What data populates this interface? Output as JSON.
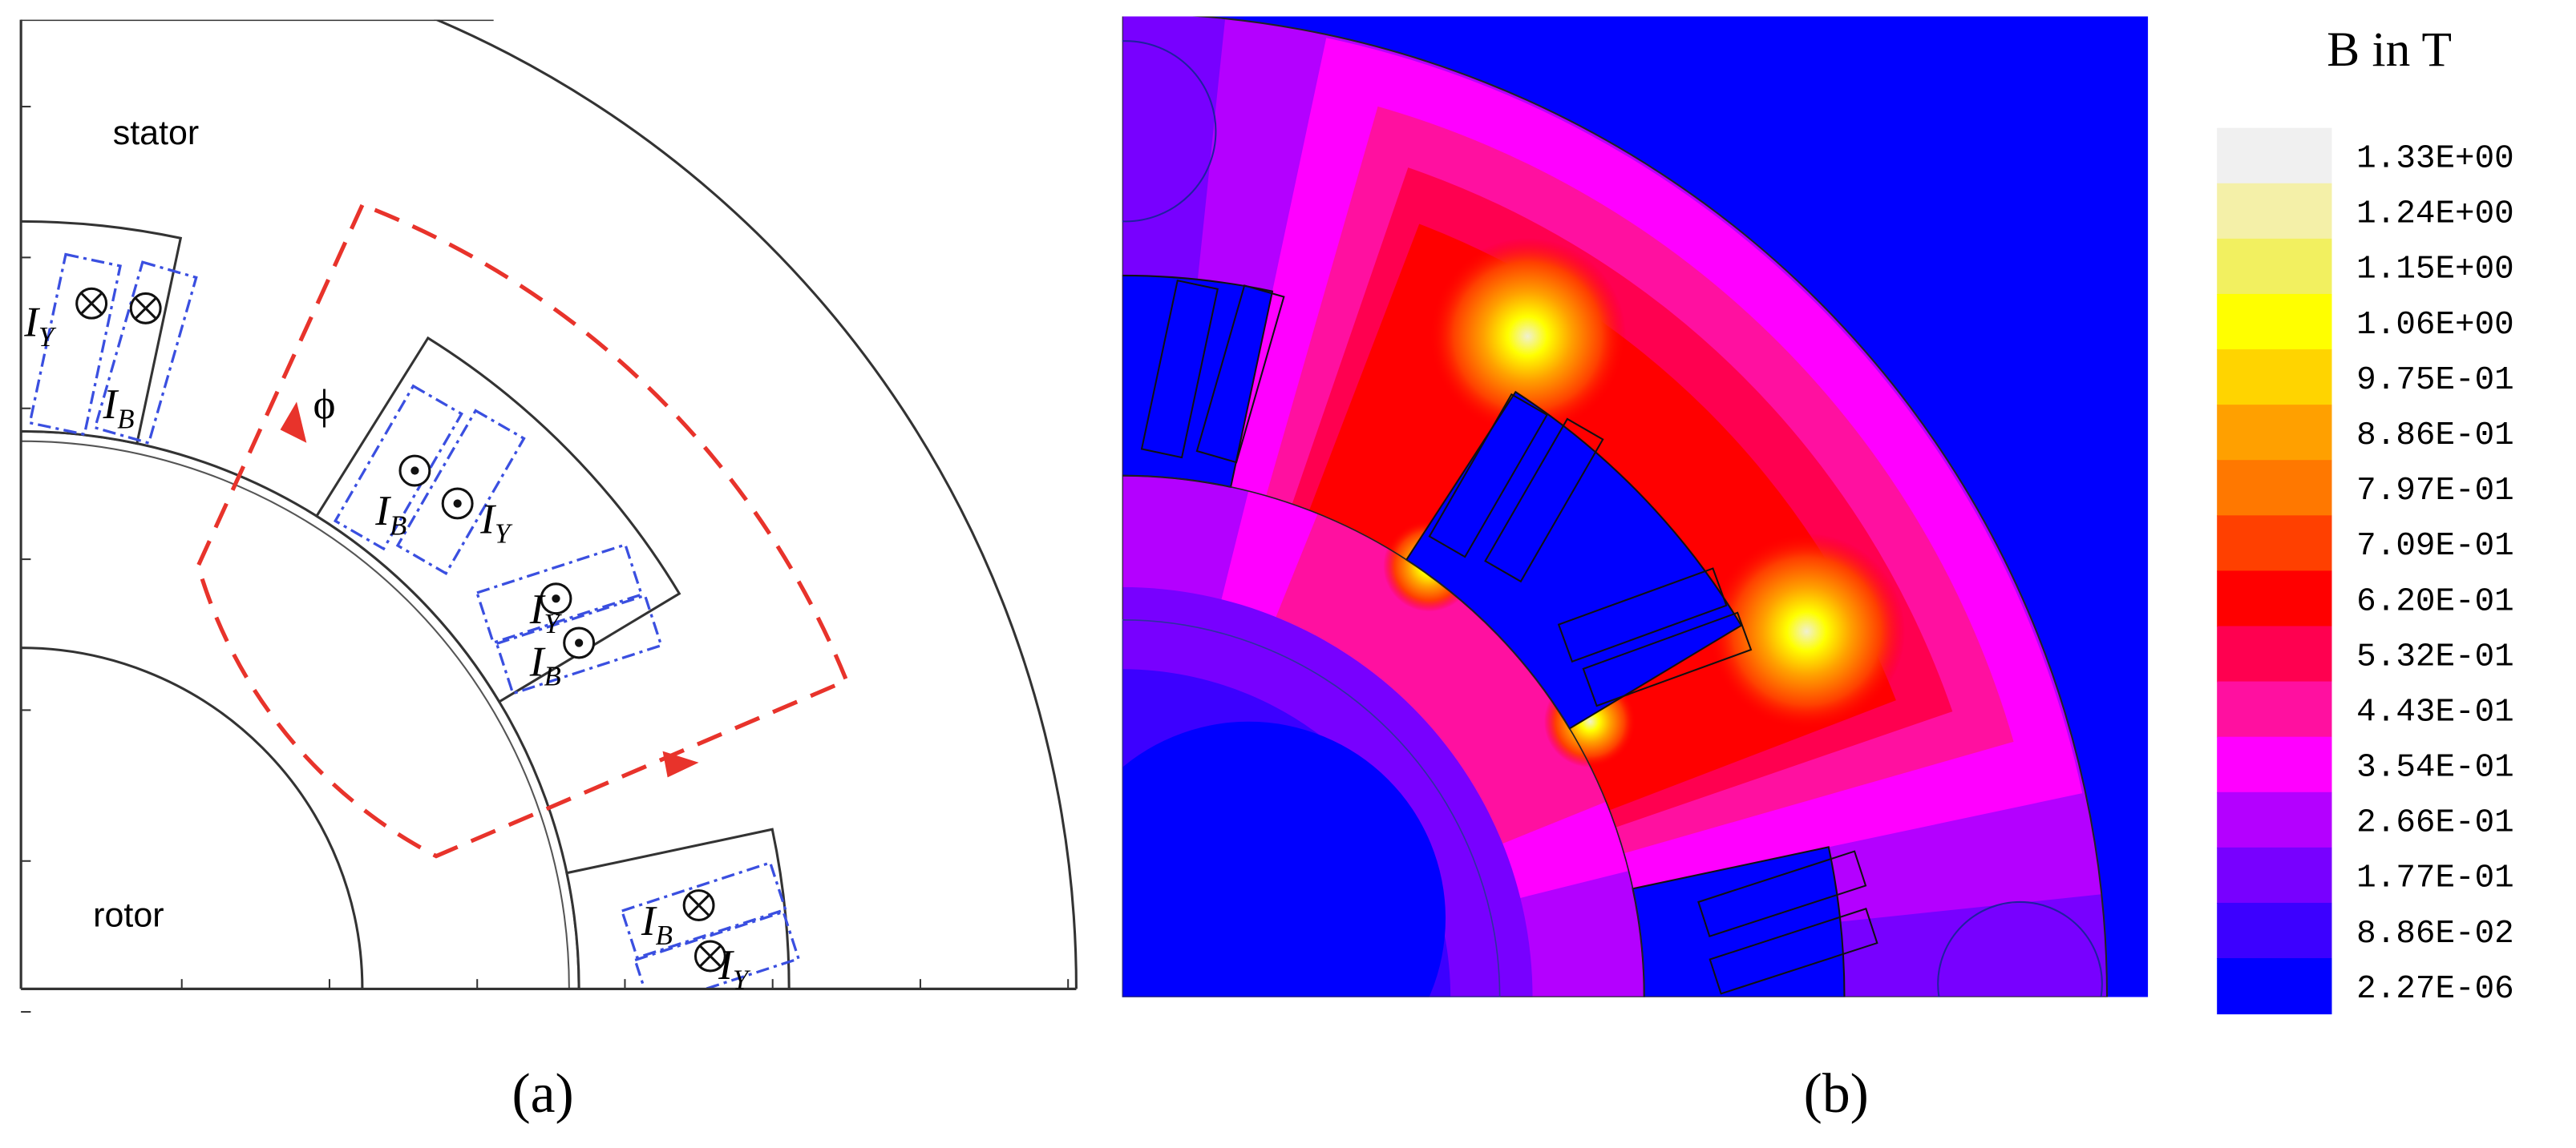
{
  "panel_a": {
    "region_labels": [
      "stator",
      "rotor"
    ],
    "flux_symbol": "ϕ",
    "current_labels": [
      {
        "symbol": "I",
        "subscript": "Y"
      },
      {
        "symbol": "I",
        "subscript": "B"
      },
      {
        "symbol": "I",
        "subscript": "B"
      },
      {
        "symbol": "I",
        "subscript": "Y"
      },
      {
        "symbol": "I",
        "subscript": "Y"
      },
      {
        "symbol": "I",
        "subscript": "B"
      },
      {
        "symbol": "I",
        "subscript": "B"
      },
      {
        "symbol": "I",
        "subscript": "Y"
      }
    ]
  },
  "panel_b": {
    "legend": {
      "title": "B in T",
      "entries": [
        {
          "label": "1.33E+00",
          "color": "#f0f0f0"
        },
        {
          "label": "1.24E+00",
          "color": "#f4f0a8"
        },
        {
          "label": "1.15E+00",
          "color": "#f2f060"
        },
        {
          "label": "1.06E+00",
          "color": "#ffff00"
        },
        {
          "label": "9.75E-01",
          "color": "#ffd400"
        },
        {
          "label": "8.86E-01",
          "color": "#ffa000"
        },
        {
          "label": "7.97E-01",
          "color": "#ff7800"
        },
        {
          "label": "7.09E-01",
          "color": "#ff4000"
        },
        {
          "label": "6.20E-01",
          "color": "#ff0000"
        },
        {
          "label": "5.32E-01",
          "color": "#ff0050"
        },
        {
          "label": "4.43E-01",
          "color": "#ff10a0"
        },
        {
          "label": "3.54E-01",
          "color": "#ff00ff"
        },
        {
          "label": "2.66E-01",
          "color": "#b400ff"
        },
        {
          "label": "1.77E-01",
          "color": "#7800ff"
        },
        {
          "label": "8.86E-02",
          "color": "#3c00ff"
        },
        {
          "label": "2.27E-06",
          "color": "#0000ff"
        }
      ]
    }
  },
  "captions": [
    "(a)",
    "(b)"
  ]
}
